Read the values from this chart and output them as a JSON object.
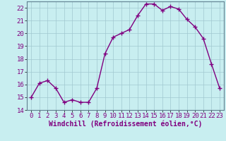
{
  "x": [
    0,
    1,
    2,
    3,
    4,
    5,
    6,
    7,
    8,
    9,
    10,
    11,
    12,
    13,
    14,
    15,
    16,
    17,
    18,
    19,
    20,
    21,
    22,
    23
  ],
  "y": [
    15.0,
    16.1,
    16.3,
    15.7,
    14.6,
    14.8,
    14.6,
    14.6,
    15.7,
    18.4,
    19.7,
    20.0,
    20.3,
    21.4,
    22.3,
    22.3,
    21.8,
    22.1,
    21.9,
    21.1,
    20.5,
    19.6,
    17.6,
    15.7
  ],
  "line_color": "#800080",
  "marker": "+",
  "markersize": 4,
  "linewidth": 1.0,
  "xlabel": "Windchill (Refroidissement éolien,°C)",
  "ylim": [
    14,
    22.5
  ],
  "xlim": [
    -0.5,
    23.5
  ],
  "yticks": [
    14,
    15,
    16,
    17,
    18,
    19,
    20,
    21,
    22
  ],
  "xticks": [
    0,
    1,
    2,
    3,
    4,
    5,
    6,
    7,
    8,
    9,
    10,
    11,
    12,
    13,
    14,
    15,
    16,
    17,
    18,
    19,
    20,
    21,
    22,
    23
  ],
  "bg_color": "#c8eef0",
  "grid_color": "#a0c8d0",
  "xlabel_fontsize": 7,
  "tick_fontsize": 6.5
}
